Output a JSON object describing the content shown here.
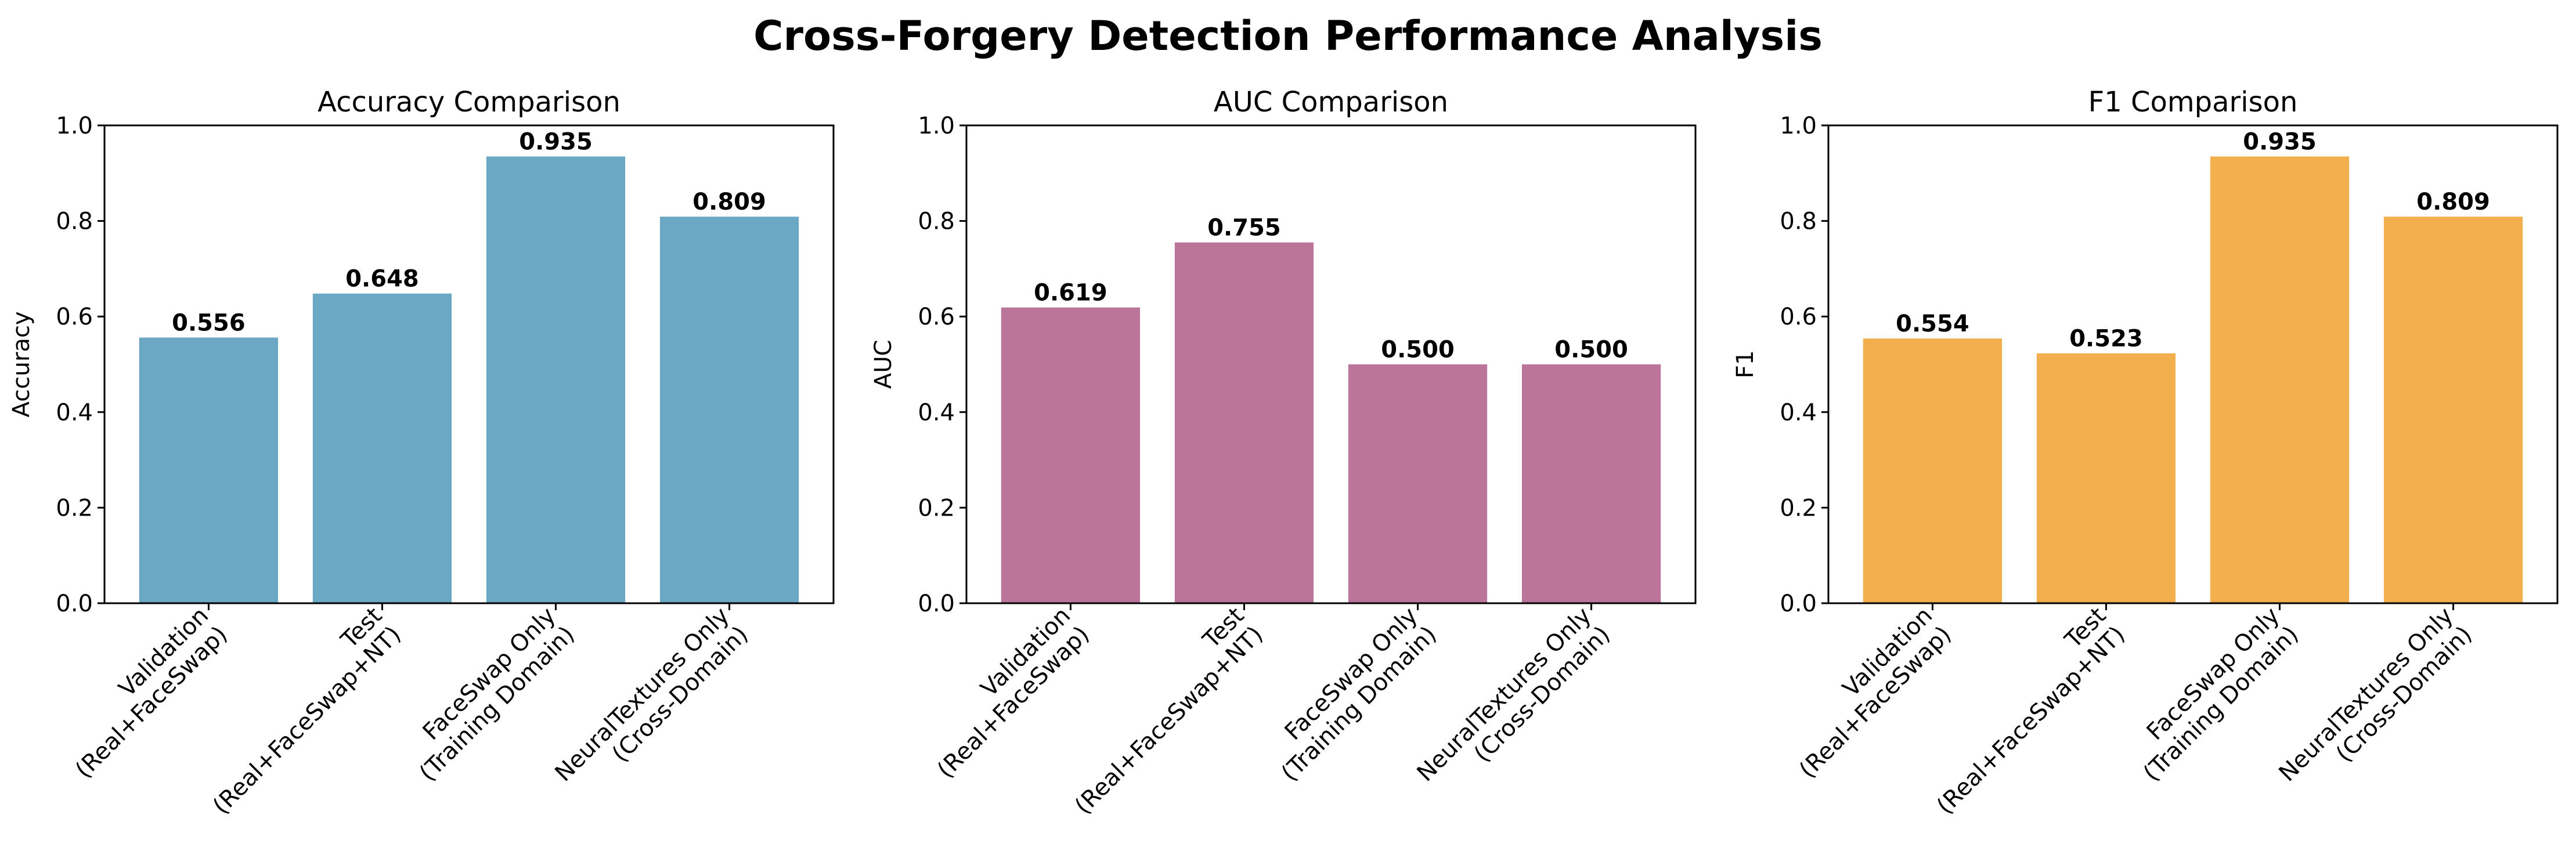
{
  "figure": {
    "title": "Cross-Forgery Detection Performance Analysis"
  },
  "chart_data": [
    {
      "type": "bar",
      "title": "Accuracy Comparison",
      "xlabel": "",
      "ylabel": "Accuracy",
      "ylim": [
        0,
        1.0
      ],
      "yticks": [
        "0.0",
        "0.2",
        "0.4",
        "0.6",
        "0.8",
        "1.0"
      ],
      "categories": [
        "Validation\n(Real+FaceSwap)",
        "Test\n(Real+FaceSwap+NT)",
        "FaceSwap Only\n(Training Domain)",
        "NeuralTextures Only\n(Cross-Domain)"
      ],
      "values": [
        0.556,
        0.648,
        0.935,
        0.809
      ],
      "labels": [
        "0.556",
        "0.648",
        "0.935",
        "0.809"
      ],
      "color": "#6aa8c4",
      "grid": false
    },
    {
      "type": "bar",
      "title": "AUC Comparison",
      "xlabel": "",
      "ylabel": "AUC",
      "ylim": [
        0,
        1.0
      ],
      "yticks": [
        "0.0",
        "0.2",
        "0.4",
        "0.6",
        "0.8",
        "1.0"
      ],
      "categories": [
        "Validation\n(Real+FaceSwap)",
        "Test\n(Real+FaceSwap+NT)",
        "FaceSwap Only\n(Training Domain)",
        "NeuralTextures Only\n(Cross-Domain)"
      ],
      "values": [
        0.619,
        0.755,
        0.5,
        0.5
      ],
      "labels": [
        "0.619",
        "0.755",
        "0.500",
        "0.500"
      ],
      "color": "#bb7599",
      "grid": false
    },
    {
      "type": "bar",
      "title": "F1 Comparison",
      "xlabel": "",
      "ylabel": "F1",
      "ylim": [
        0,
        1.0
      ],
      "yticks": [
        "0.0",
        "0.2",
        "0.4",
        "0.6",
        "0.8",
        "1.0"
      ],
      "categories": [
        "Validation\n(Real+FaceSwap)",
        "Test\n(Real+FaceSwap+NT)",
        "FaceSwap Only\n(Training Domain)",
        "NeuralTextures Only\n(Cross-Domain)"
      ],
      "values": [
        0.554,
        0.523,
        0.935,
        0.809
      ],
      "labels": [
        "0.554",
        "0.523",
        "0.935",
        "0.809"
      ],
      "color": "#f3ae4e",
      "grid": false
    }
  ]
}
